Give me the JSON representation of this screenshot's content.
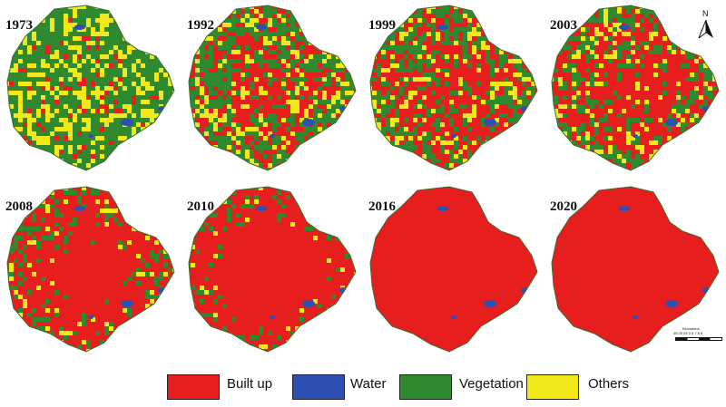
{
  "colors": {
    "built_up": "#e61e1e",
    "water": "#2e4fb3",
    "vegetation": "#2f8a2f",
    "others": "#f2e81a"
  },
  "panels": [
    {
      "year": "1973",
      "built_up_share": 0.1
    },
    {
      "year": "1992",
      "built_up_share": 0.35
    },
    {
      "year": "1999",
      "built_up_share": 0.42
    },
    {
      "year": "2003",
      "built_up_share": 0.48
    },
    {
      "year": "2008",
      "built_up_share": 0.62
    },
    {
      "year": "2010",
      "built_up_share": 0.7
    },
    {
      "year": "2016",
      "built_up_share": 0.92
    },
    {
      "year": "2020",
      "built_up_share": 0.96
    }
  ],
  "north_arrow": {
    "label": "N"
  },
  "scale_bar": {
    "title": "Kilometers",
    "ticks": "05 25 25 0  5   7.5  5"
  },
  "legend": [
    {
      "label": "Built up",
      "color_key": "built_up"
    },
    {
      "label": "Water",
      "color_key": "water"
    },
    {
      "label": "Vegetation",
      "color_key": "vegetation"
    },
    {
      "label": "Others",
      "color_key": "others"
    }
  ]
}
